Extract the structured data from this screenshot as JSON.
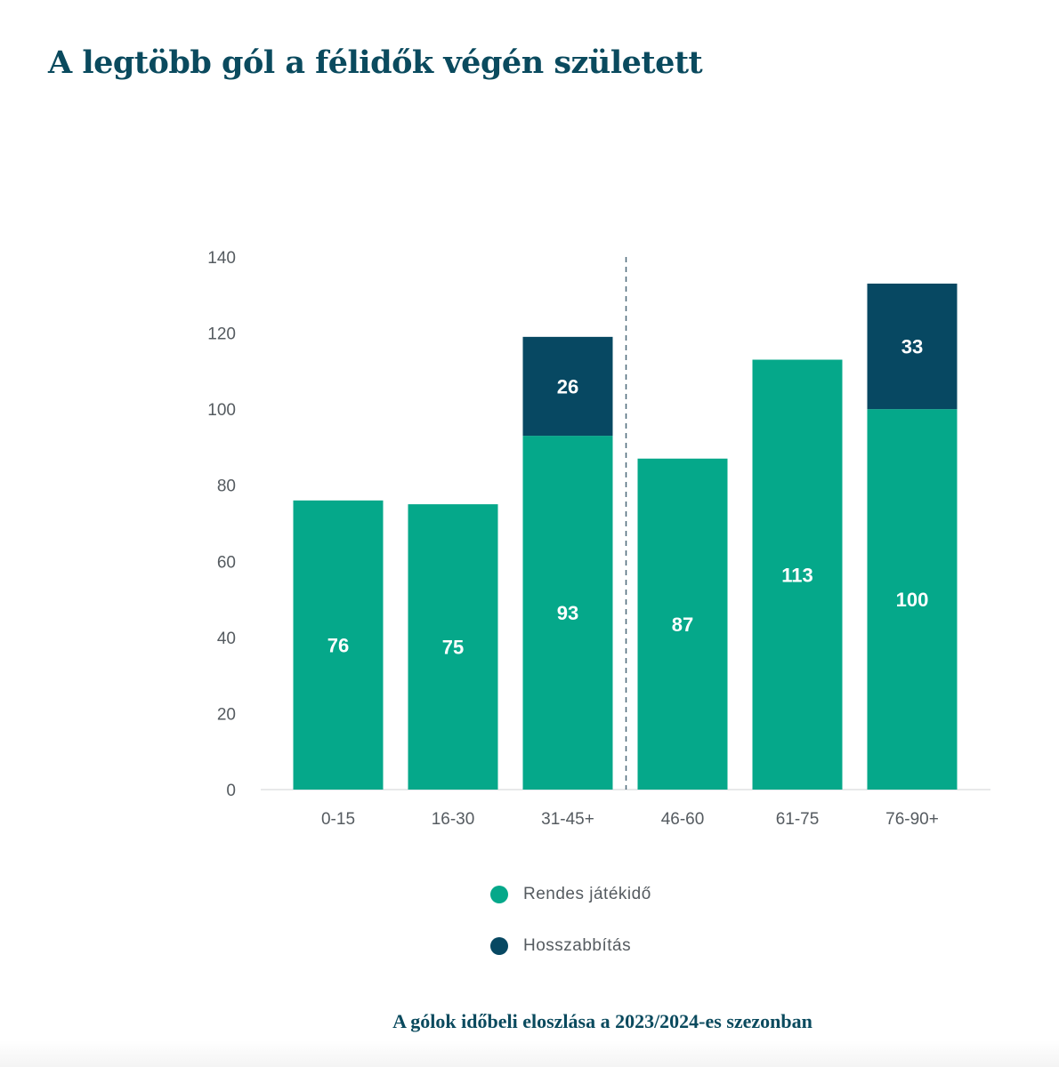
{
  "title": "A legtöbb gól a félidők végén született",
  "caption": "A gólok időbeli eloszlása a 2023/2024-es szezonban",
  "chart_data": {
    "type": "bar",
    "stacked": true,
    "title": "A legtöbb gól a félidők végén született",
    "categories": [
      "0-15",
      "16-30",
      "31-45+",
      "46-60",
      "61-75",
      "76-90+"
    ],
    "series": [
      {
        "name": "Rendes játékidő",
        "color": "#05a88a",
        "values": [
          76,
          75,
          93,
          87,
          113,
          100
        ]
      },
      {
        "name": "Hosszabbítás",
        "color": "#074862",
        "values": [
          0,
          0,
          26,
          0,
          0,
          33
        ]
      }
    ],
    "ylim": [
      0,
      140
    ],
    "yticks": [
      0,
      20,
      40,
      60,
      80,
      100,
      120,
      140
    ],
    "grid": false,
    "halftime_divider_after": "31-45+",
    "legend_position": "bottom"
  }
}
